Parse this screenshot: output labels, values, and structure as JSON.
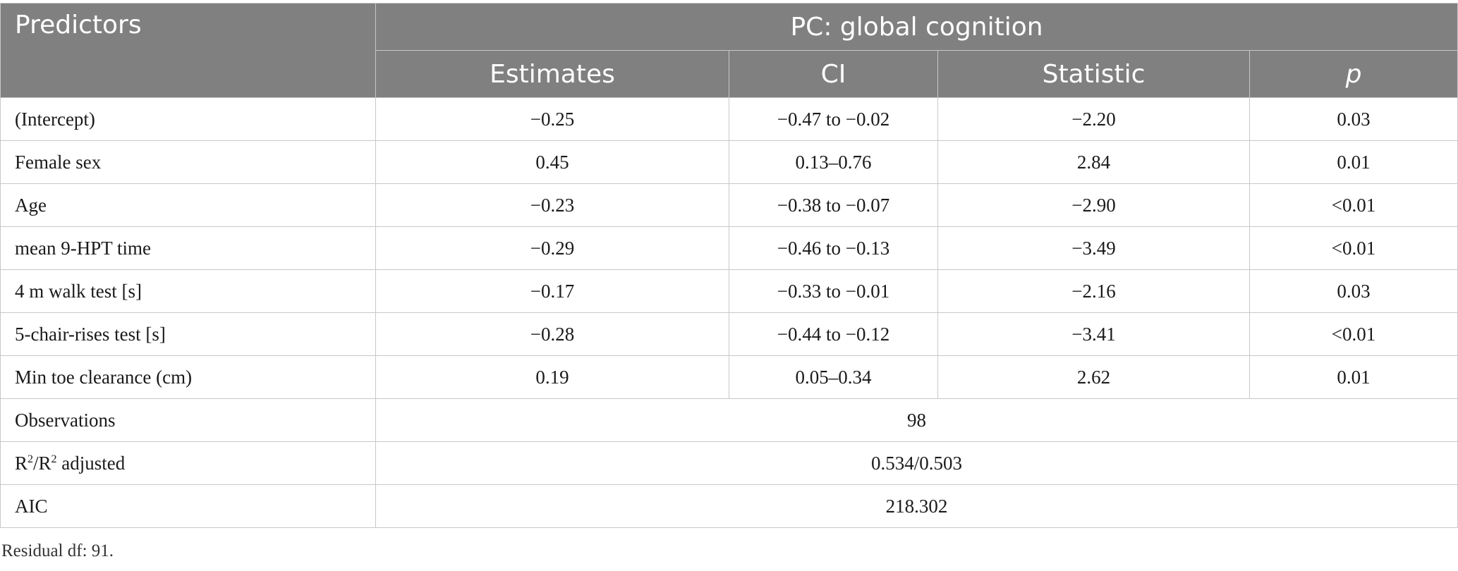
{
  "header": {
    "predictors": "Predictors",
    "group": "PC: global cognition",
    "estimates": "Estimates",
    "ci": "CI",
    "statistic": "Statistic",
    "p": "p"
  },
  "rows": [
    {
      "predictor": "(Intercept)",
      "estimate": "−0.25",
      "ci": "−0.47 to −0.02",
      "statistic": "−2.20",
      "p": "0.03"
    },
    {
      "predictor": "Female sex",
      "estimate": "0.45",
      "ci": "0.13–0.76",
      "statistic": "2.84",
      "p": "0.01"
    },
    {
      "predictor": "Age",
      "estimate": "−0.23",
      "ci": "−0.38 to −0.07",
      "statistic": "−2.90",
      "p": "<0.01"
    },
    {
      "predictor": "mean 9-HPT time",
      "estimate": "−0.29",
      "ci": "−0.46 to −0.13",
      "statistic": "−3.49",
      "p": "<0.01"
    },
    {
      "predictor": "4 m walk test [s]",
      "estimate": "−0.17",
      "ci": "−0.33 to −0.01",
      "statistic": "−2.16",
      "p": "0.03"
    },
    {
      "predictor": "5-chair-rises test [s]",
      "estimate": "−0.28",
      "ci": "−0.44 to −0.12",
      "statistic": "−3.41",
      "p": "<0.01"
    },
    {
      "predictor": "Min toe clearance (cm)",
      "estimate": "0.19",
      "ci": "0.05–0.34",
      "statistic": "2.62",
      "p": "0.01"
    }
  ],
  "summary": {
    "observations_label": "Observations",
    "observations_value": "98",
    "r2_label_a": "R",
    "r2_sup_a": "2",
    "r2_label_b": "/R",
    "r2_sup_b": "2",
    "r2_label_c": " adjusted",
    "r2_value": "0.534/0.503",
    "aic_label": "AIC",
    "aic_value": "218.302"
  },
  "footnote": "Residual df: 91."
}
